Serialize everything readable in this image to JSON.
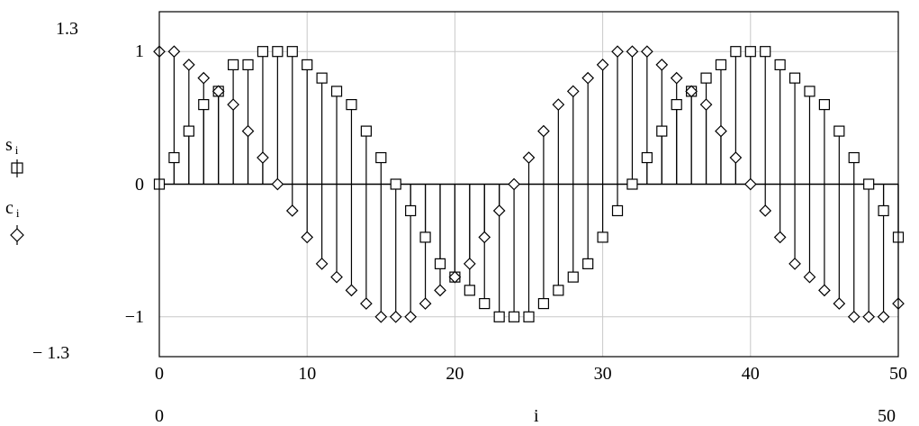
{
  "chart_data": {
    "type": "stem",
    "x_label": "i",
    "xlim": [
      0,
      50
    ],
    "ylim": [
      -1.3,
      1.3
    ],
    "x_ticks": [
      0,
      10,
      20,
      30,
      40,
      50
    ],
    "y_ticks": [
      -1,
      0,
      1
    ],
    "range_labels": {
      "y_max": "1.3",
      "y_min": "− 1.3",
      "x_min": "0",
      "x_max": "50"
    },
    "grid": true,
    "legend": [
      {
        "name": "s",
        "subscript": "i",
        "marker": "square"
      },
      {
        "name": "c",
        "subscript": "i",
        "marker": "diamond"
      }
    ],
    "series": [
      {
        "name": "s_i",
        "marker": "square",
        "x": [
          0,
          1,
          2,
          3,
          4,
          5,
          6,
          7,
          8,
          9,
          10,
          11,
          12,
          13,
          14,
          15,
          16,
          17,
          18,
          19,
          20,
          21,
          22,
          23,
          24,
          25,
          26,
          27,
          28,
          29,
          30,
          31,
          32,
          33,
          34,
          35,
          36,
          37,
          38,
          39,
          40,
          41,
          42,
          43,
          44,
          45,
          46,
          47,
          48,
          49,
          50
        ],
        "y": [
          0,
          0.2,
          0.4,
          0.6,
          0.7,
          0.9,
          0.9,
          1.0,
          1.0,
          1.0,
          0.9,
          0.8,
          0.7,
          0.6,
          0.4,
          0.2,
          0,
          -0.2,
          -0.4,
          -0.6,
          -0.7,
          -0.8,
          -0.9,
          -1.0,
          -1.0,
          -1.0,
          -0.9,
          -0.8,
          -0.7,
          -0.6,
          -0.4,
          -0.2,
          0,
          0.2,
          0.4,
          0.6,
          0.7,
          0.8,
          0.9,
          1.0,
          1.0,
          1.0,
          0.9,
          0.8,
          0.7,
          0.6,
          0.4,
          0.2,
          0,
          -0.2,
          -0.4
        ]
      },
      {
        "name": "c_i",
        "marker": "diamond",
        "x": [
          0,
          1,
          2,
          3,
          4,
          5,
          6,
          7,
          8,
          9,
          10,
          11,
          12,
          13,
          14,
          15,
          16,
          17,
          18,
          19,
          20,
          21,
          22,
          23,
          24,
          25,
          26,
          27,
          28,
          29,
          30,
          31,
          32,
          33,
          34,
          35,
          36,
          37,
          38,
          39,
          40,
          41,
          42,
          43,
          44,
          45,
          46,
          47,
          48,
          49,
          50
        ],
        "y": [
          1.0,
          1.0,
          0.9,
          0.8,
          0.7,
          0.6,
          0.4,
          0.2,
          0,
          -0.2,
          -0.4,
          -0.6,
          -0.7,
          -0.8,
          -0.9,
          -1.0,
          -1.0,
          -1.0,
          -0.9,
          -0.8,
          -0.7,
          -0.6,
          -0.4,
          -0.2,
          0,
          0.2,
          0.4,
          0.6,
          0.7,
          0.8,
          0.9,
          1.0,
          1.0,
          1.0,
          0.9,
          0.8,
          0.7,
          0.6,
          0.4,
          0.2,
          0,
          -0.2,
          -0.4,
          -0.6,
          -0.7,
          -0.8,
          -0.9,
          -1.0,
          -1.0,
          -1.0,
          -0.9
        ]
      }
    ]
  }
}
